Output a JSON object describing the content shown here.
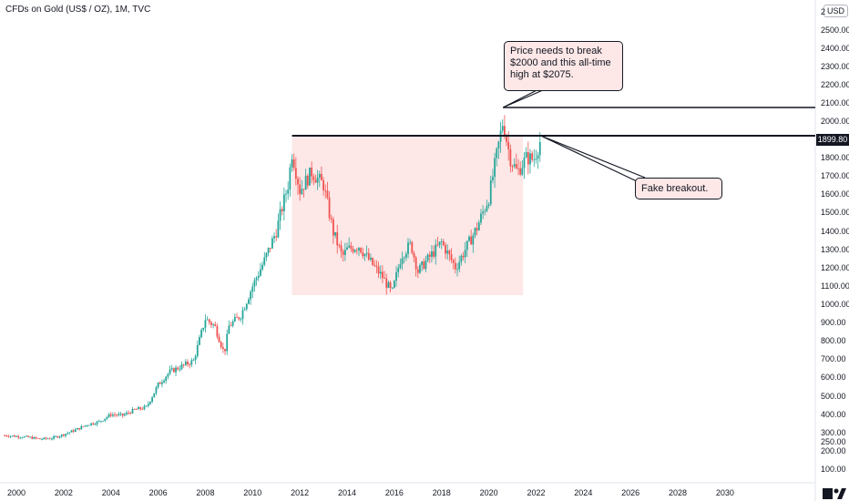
{
  "chart_header": {
    "title": "CFDs on Gold (US$ / OZ), 1M, TVC",
    "currency": "USD"
  },
  "colors": {
    "up": "#26a69a",
    "down": "#ef5350",
    "range_box": "#fde7e7",
    "line": "#131722"
  },
  "chart_data": {
    "type": "candlestick",
    "title": "CFDs on Gold (US$ / OZ), 1M, TVC",
    "y_axis": {
      "ticks": [
        "100.00",
        "200.00",
        "250.00",
        "300.00",
        "400.00",
        "500.00",
        "600.00",
        "700.00",
        "800.00",
        "900.00",
        "1000.00",
        "1100.00",
        "1200.00",
        "1300.00",
        "1400.00",
        "1500.00",
        "1600.00",
        "1700.00",
        "1800.00",
        "1900.00",
        "2000.00",
        "2100.00",
        "2200.00",
        "2300.00",
        "2400.00",
        "2500.00",
        "2"
      ],
      "range": [
        100,
        2600
      ]
    },
    "x_axis": {
      "ticks": [
        "2000",
        "2002",
        "2004",
        "2006",
        "2008",
        "2010",
        "2012",
        "2014",
        "2016",
        "2018",
        "2020",
        "2022",
        "2024",
        "2026",
        "2028",
        "2030"
      ],
      "range": [
        1999.3,
        2032.3
      ]
    },
    "series": [
      {
        "points": [
          [
            1999.5,
            285
          ],
          [
            2000.0,
            280
          ],
          [
            2000.5,
            275
          ],
          [
            2001.0,
            265
          ],
          [
            2001.5,
            270
          ],
          [
            2002.0,
            290
          ],
          [
            2002.5,
            315
          ],
          [
            2003.0,
            345
          ],
          [
            2003.5,
            360
          ],
          [
            2004.0,
            400
          ],
          [
            2004.5,
            395
          ],
          [
            2005.0,
            425
          ],
          [
            2005.5,
            440
          ],
          [
            2006.0,
            560
          ],
          [
            2006.5,
            630
          ],
          [
            2007.0,
            660
          ],
          [
            2007.5,
            690
          ],
          [
            2008.0,
            920
          ],
          [
            2008.4,
            880
          ],
          [
            2008.8,
            730
          ],
          [
            2009.0,
            880
          ],
          [
            2009.5,
            940
          ],
          [
            2010.0,
            1100
          ],
          [
            2010.5,
            1240
          ],
          [
            2011.0,
            1400
          ],
          [
            2011.5,
            1650
          ],
          [
            2011.67,
            1830
          ],
          [
            2012.0,
            1620
          ],
          [
            2012.5,
            1720
          ],
          [
            2013.0,
            1650
          ],
          [
            2013.4,
            1400
          ],
          [
            2013.8,
            1260
          ],
          [
            2014.0,
            1300
          ],
          [
            2014.5,
            1320
          ],
          [
            2015.0,
            1230
          ],
          [
            2015.5,
            1150
          ],
          [
            2015.9,
            1060
          ],
          [
            2016.3,
            1270
          ],
          [
            2016.7,
            1330
          ],
          [
            2017.0,
            1180
          ],
          [
            2017.5,
            1260
          ],
          [
            2018.0,
            1340
          ],
          [
            2018.6,
            1200
          ],
          [
            2019.0,
            1300
          ],
          [
            2019.5,
            1420
          ],
          [
            2020.0,
            1580
          ],
          [
            2020.6,
            2000
          ],
          [
            2020.9,
            1800
          ],
          [
            2021.2,
            1720
          ],
          [
            2021.6,
            1800
          ],
          [
            2021.9,
            1790
          ],
          [
            2022.2,
            1900
          ]
        ]
      }
    ],
    "annotations": {
      "resistance_level": 1920,
      "ath_level": 2075,
      "range_box": {
        "x": [
          2011.67,
          2021.45
        ],
        "y": [
          1050,
          1920
        ]
      },
      "callout_ath": "Price needs to break $2000 and this all-time high at $2075.",
      "callout_breakout": "Fake breakout.",
      "last_price_label": "1899.80"
    }
  }
}
